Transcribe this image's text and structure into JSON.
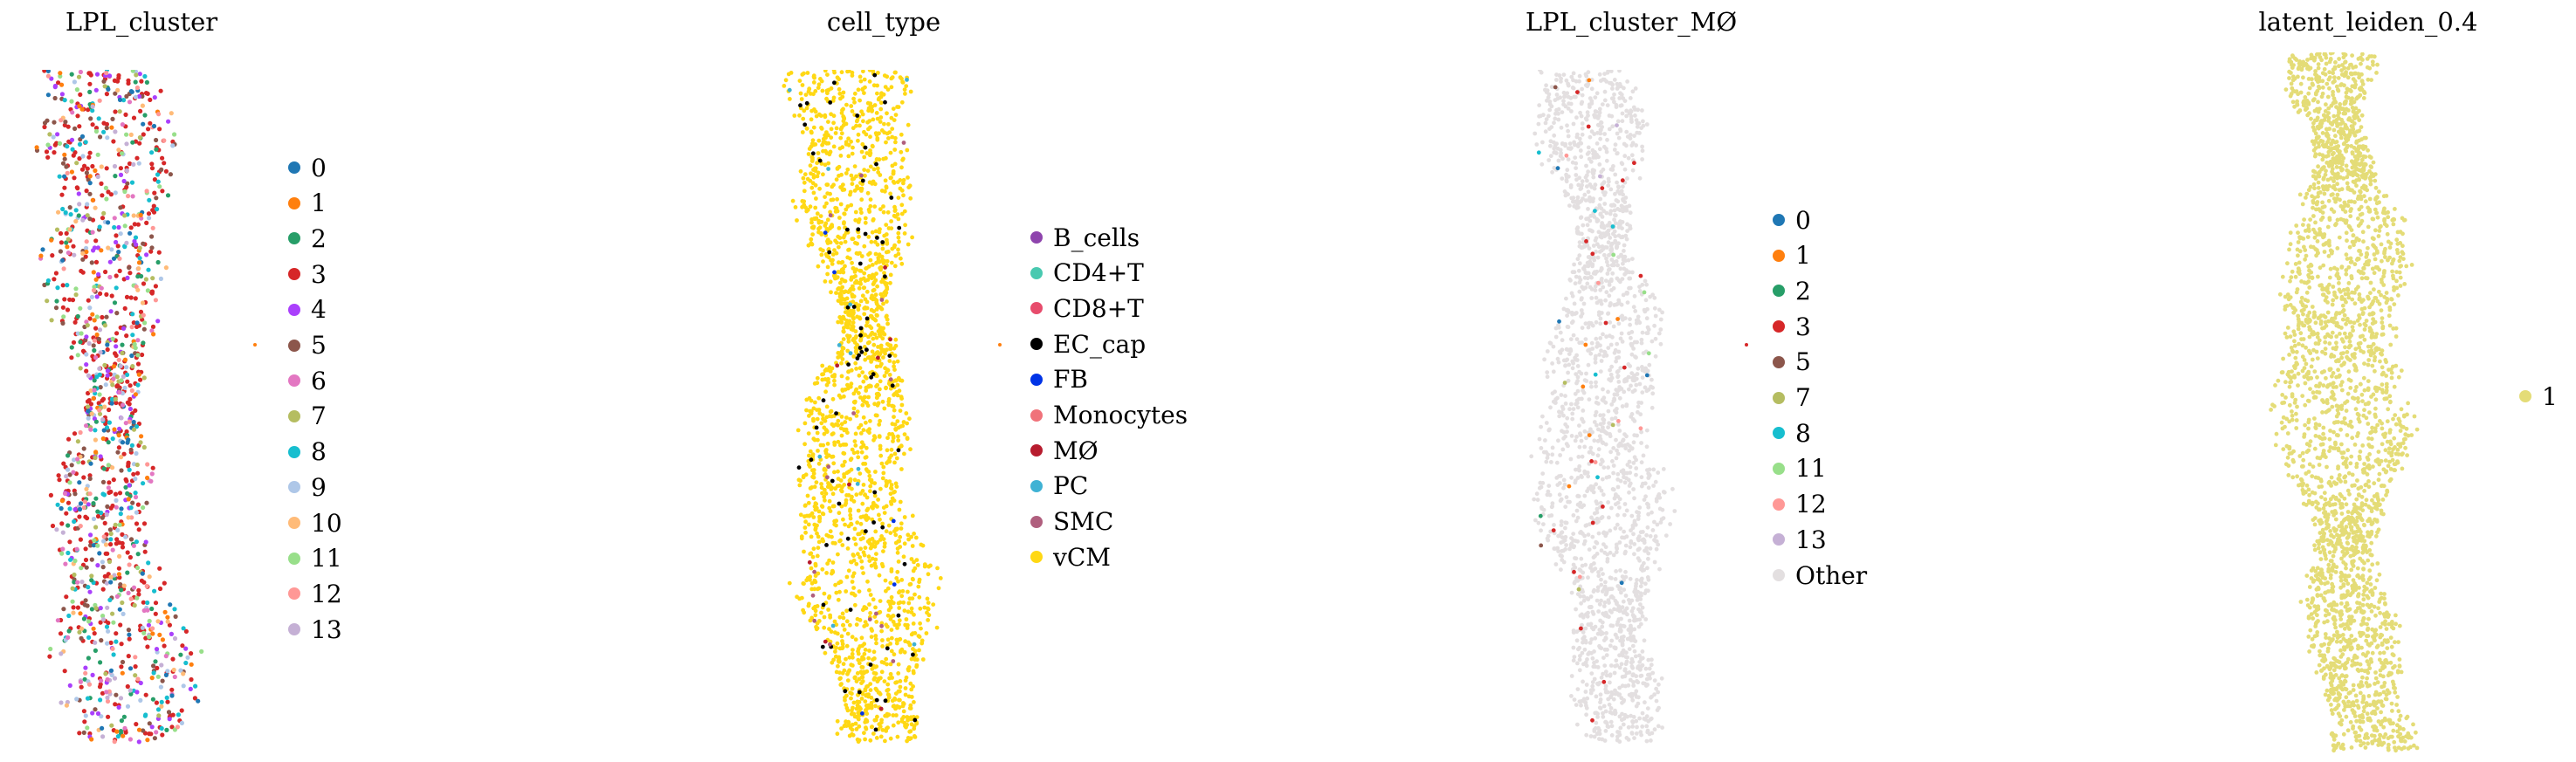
{
  "chart_data": [
    {
      "type": "scatter",
      "title": "LPL_cluster",
      "xlabel": "",
      "ylabel": "",
      "grid": false,
      "legend": "right",
      "series": [
        {
          "name": "0",
          "color": "#1f77b4",
          "weight": 3
        },
        {
          "name": "1",
          "color": "#ff7f0e",
          "weight": 3
        },
        {
          "name": "2",
          "color": "#279e68",
          "weight": 4
        },
        {
          "name": "3",
          "color": "#d62728",
          "weight": 22
        },
        {
          "name": "4",
          "color": "#aa40fc",
          "weight": 4
        },
        {
          "name": "5",
          "color": "#8c564b",
          "weight": 6
        },
        {
          "name": "6",
          "color": "#e377c2",
          "weight": 3
        },
        {
          "name": "7",
          "color": "#b5bd61",
          "weight": 3
        },
        {
          "name": "8",
          "color": "#17becf",
          "weight": 4
        },
        {
          "name": "9",
          "color": "#aec7e8",
          "weight": 4
        },
        {
          "name": "10",
          "color": "#ffbb78",
          "weight": 3
        },
        {
          "name": "11",
          "color": "#98df8a",
          "weight": 3
        },
        {
          "name": "12",
          "color": "#ff9896",
          "weight": 3
        },
        {
          "name": "13",
          "color": "#c5b0d5",
          "weight": 3
        }
      ]
    },
    {
      "type": "scatter",
      "title": "cell_type",
      "xlabel": "",
      "ylabel": "",
      "grid": false,
      "legend": "right",
      "series": [
        {
          "name": "B_cells",
          "color": "#8e44ad",
          "weight": 0
        },
        {
          "name": "CD4+T",
          "color": "#48c9b0",
          "weight": 0
        },
        {
          "name": "CD8+T",
          "color": "#e74c6c",
          "weight": 0
        },
        {
          "name": "EC_cap",
          "color": "#000000",
          "weight": 3
        },
        {
          "name": "FB",
          "color": "#0033e6",
          "weight": 0.5
        },
        {
          "name": "Monocytes",
          "color": "#f0727a",
          "weight": 0
        },
        {
          "name": "MØ",
          "color": "#b71c2e",
          "weight": 0.5
        },
        {
          "name": "PC",
          "color": "#3fb2d4",
          "weight": 0.5
        },
        {
          "name": "SMC",
          "color": "#b05f7e",
          "weight": 0.5
        },
        {
          "name": "vCM",
          "color": "#ffd814",
          "weight": 95
        }
      ]
    },
    {
      "type": "scatter",
      "title": "LPL_cluster_MØ",
      "xlabel": "",
      "ylabel": "",
      "grid": false,
      "legend": "right",
      "series": [
        {
          "name": "0",
          "color": "#1f77b4",
          "weight": 0.2
        },
        {
          "name": "1",
          "color": "#ff7f0e",
          "weight": 0.2
        },
        {
          "name": "2",
          "color": "#279e68",
          "weight": 0.2
        },
        {
          "name": "3",
          "color": "#d62728",
          "weight": 0.8
        },
        {
          "name": "5",
          "color": "#8c564b",
          "weight": 0.2
        },
        {
          "name": "7",
          "color": "#b5bd61",
          "weight": 0.2
        },
        {
          "name": "8",
          "color": "#17becf",
          "weight": 0.2
        },
        {
          "name": "11",
          "color": "#98df8a",
          "weight": 0.2
        },
        {
          "name": "12",
          "color": "#ff9896",
          "weight": 0.2
        },
        {
          "name": "13",
          "color": "#c5b0d5",
          "weight": 0.2
        },
        {
          "name": "Other",
          "color": "#e3dfe0",
          "weight": 98
        }
      ]
    },
    {
      "type": "scatter",
      "title": "latent_leiden_0.4",
      "xlabel": "",
      "ylabel": "",
      "grid": false,
      "legend": "right",
      "series": [
        {
          "name": "1",
          "color": "#e4dc77",
          "weight": 100
        }
      ]
    }
  ]
}
